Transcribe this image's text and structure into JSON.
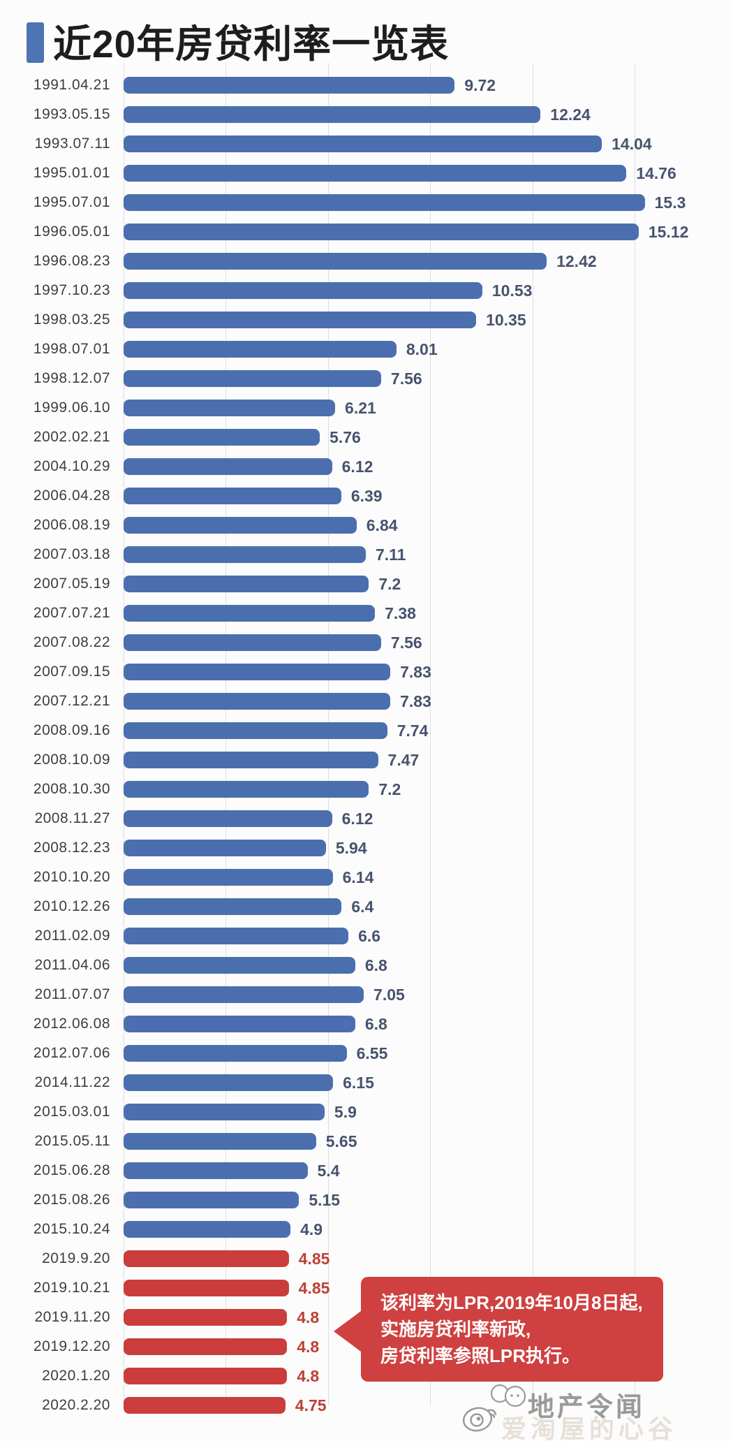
{
  "title": {
    "text": "近20年房贷利率一览表"
  },
  "chart_data": {
    "type": "bar",
    "orientation": "horizontal",
    "title": "近20年房贷利率一览表",
    "categories": [
      "1991.04.21",
      "1993.05.15",
      "1993.07.11",
      "1995.01.01",
      "1995.07.01",
      "1996.05.01",
      "1996.08.23",
      "1997.10.23",
      "1998.03.25",
      "1998.07.01",
      "1998.12.07",
      "1999.06.10",
      "2002.02.21",
      "2004.10.29",
      "2006.04.28",
      "2006.08.19",
      "2007.03.18",
      "2007.05.19",
      "2007.07.21",
      "2007.08.22",
      "2007.09.15",
      "2007.12.21",
      "2008.09.16",
      "2008.10.09",
      "2008.10.30",
      "2008.11.27",
      "2008.12.23",
      "2010.10.20",
      "2010.12.26",
      "2011.02.09",
      "2011.04.06",
      "2011.07.07",
      "2012.06.08",
      "2012.07.06",
      "2014.11.22",
      "2015.03.01",
      "2015.05.11",
      "2015.06.28",
      "2015.08.26",
      "2015.10.24",
      "2019.9.20",
      "2019.10.21",
      "2019.11.20",
      "2019.12.20",
      "2020.1.20",
      "2020.2.20"
    ],
    "values": [
      9.72,
      12.24,
      14.04,
      14.76,
      15.3,
      15.12,
      12.42,
      10.53,
      10.35,
      8.01,
      7.56,
      6.21,
      5.76,
      6.12,
      6.39,
      6.84,
      7.11,
      7.2,
      7.38,
      7.56,
      7.83,
      7.83,
      7.74,
      7.47,
      7.2,
      6.12,
      5.94,
      6.14,
      6.4,
      6.6,
      6.8,
      7.05,
      6.8,
      6.55,
      6.15,
      5.9,
      5.65,
      5.4,
      5.15,
      4.9,
      4.85,
      4.85,
      4.8,
      4.8,
      4.8,
      4.75
    ],
    "red_from_index": 40,
    "xlim": [
      0,
      16
    ],
    "gridline_values": [
      0,
      3,
      6,
      9,
      12,
      15
    ],
    "grid": true,
    "legend": false,
    "colors": {
      "bar_blue": "#4b6fae",
      "bar_red": "#cb3d3d",
      "label_blue": "#47536e",
      "label_red": "#bc4136"
    }
  },
  "annotation": {
    "lines": [
      "该利率为LPR,2019年10月8日起,",
      "实施房贷利率新政,",
      "房贷利率参照LPR执行。"
    ]
  },
  "watermark": {
    "logo_text": "地产令闻",
    "sub_text": "爱淘屋的心谷"
  }
}
